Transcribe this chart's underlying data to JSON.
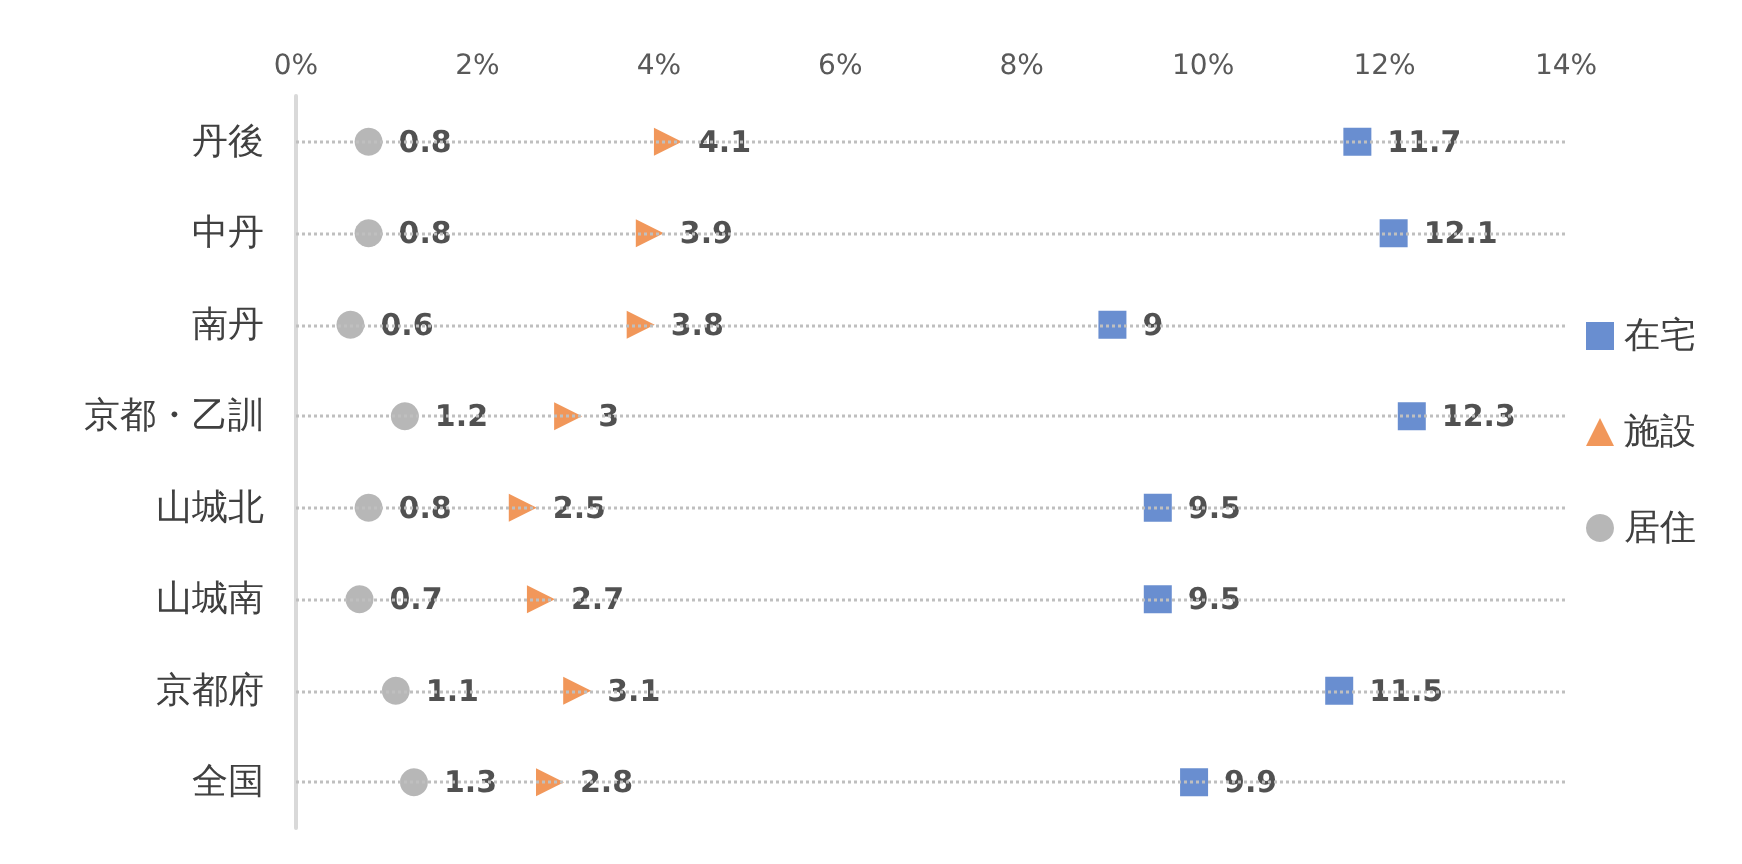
{
  "chart_data": {
    "type": "scatter",
    "orientation": "horizontal",
    "categories": [
      "丹後",
      "中丹",
      "南丹",
      "京都・乙訓",
      "山城北",
      "山城南",
      "京都府",
      "全国"
    ],
    "series": [
      {
        "name": "在宅",
        "color": "#4472c4",
        "marker": "square",
        "values": [
          11.7,
          12.1,
          9,
          12.3,
          9.5,
          9.5,
          11.5,
          9.9
        ]
      },
      {
        "name": "施設",
        "color": "#ed7d31",
        "marker": "triangle",
        "values": [
          4.1,
          3.9,
          3.8,
          3,
          2.5,
          2.7,
          3.1,
          2.8
        ]
      },
      {
        "name": "居住",
        "color": "#a5a5a5",
        "marker": "circle",
        "values": [
          0.8,
          0.8,
          0.6,
          1.2,
          0.8,
          0.7,
          1.1,
          1.3
        ]
      }
    ],
    "xlim": [
      0,
      14
    ],
    "xticks": [
      {
        "value": 0,
        "label": "0%"
      },
      {
        "value": 2,
        "label": "2%"
      },
      {
        "value": 4,
        "label": "4%"
      },
      {
        "value": 6,
        "label": "6%"
      },
      {
        "value": 8,
        "label": "8%"
      },
      {
        "value": 10,
        "label": "10%"
      },
      {
        "value": 12,
        "label": "12%"
      },
      {
        "value": 14,
        "label": "14%"
      }
    ],
    "grid": "y",
    "legend": "right",
    "data_labels": true
  }
}
